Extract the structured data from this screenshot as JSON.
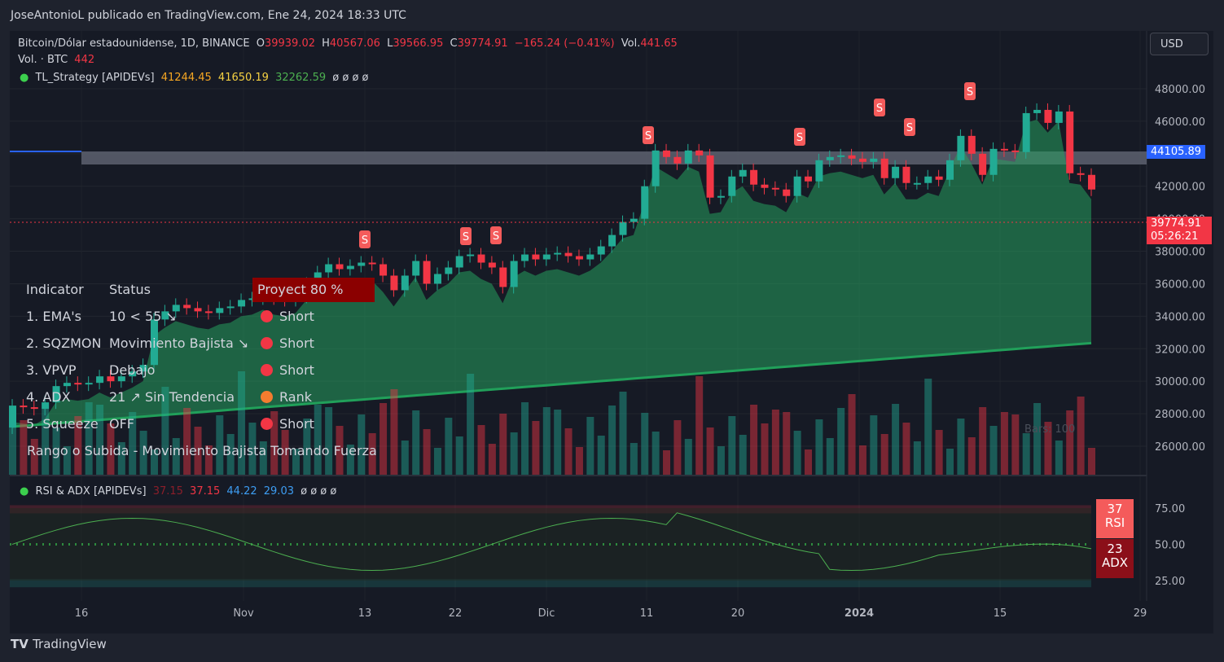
{
  "header": {
    "publisher": "JoseAntonioL publicado en TradingView.com, Ene 24, 2024 18:33 UTC"
  },
  "symbol": {
    "name": "Bitcoin/Dólar estadounidense, 1D, BINANCE",
    "o_label": "O",
    "o": "39939.02",
    "h_label": "H",
    "h": "40567.06",
    "l_label": "L",
    "l": "39566.95",
    "c_label": "C",
    "c": "39774.91",
    "change": "−165.24 (−0.41%)",
    "vol_label": "Vol.",
    "vol": "441.65"
  },
  "volume_legend": {
    "label": "Vol. · BTC",
    "value": "442"
  },
  "strategy_legend": {
    "name": "TL_Strategy [APIDEVs]",
    "v1": "41244.45",
    "v2": "41650.19",
    "v3": "32262.59",
    "tail": "ø ø ø ø"
  },
  "rsi_legend": {
    "name": "RSI & ADX [APIDEVs]",
    "v0": "37.15",
    "v1": "37.15",
    "v2": "44.22",
    "v3": "29.03",
    "tail": "ø ø ø ø"
  },
  "currency_button": "USD",
  "price_tags": {
    "level": "44105.89",
    "last": "39774.91",
    "countdown": "05:26:21"
  },
  "rsi_tags": {
    "rsi_value": "37",
    "rsi_label": "RSI",
    "adx_value": "23",
    "adx_label": "ADX"
  },
  "status_table": {
    "header": [
      "Indicator",
      "Status",
      "Proyect 80 %"
    ],
    "rows": [
      {
        "indicator": "1. EMA's",
        "status": "10 < 55 ↘",
        "signal": "Short",
        "color": "#f23645"
      },
      {
        "indicator": "2. SQZMON",
        "status": "Movimiento Bajista ↘",
        "signal": "Short",
        "color": "#f23645"
      },
      {
        "indicator": "3. VPVP",
        "status": "Debajo",
        "signal": "Short",
        "color": "#f23645"
      },
      {
        "indicator": "4. ADX",
        "status": "21 ↗ Sin Tendencia",
        "signal": "Rank",
        "color": "#f57c2f"
      },
      {
        "indicator": "5. Squeeze",
        "status": "OFF",
        "signal": "Short",
        "color": "#f23645"
      }
    ],
    "footer": "Rango o Subida - Movimiento Bajista Tomando Fuerza"
  },
  "bars_label": "Bars: 100",
  "footer_brand": "TradingView",
  "chart_data": {
    "type": "candlestick",
    "y_axis": [
      "48000.00",
      "46000.00",
      "44000.00",
      "42000.00",
      "40000.00",
      "38000.00",
      "36000.00",
      "34000.00",
      "32000.00",
      "30000.00",
      "28000.00",
      "26000.00"
    ],
    "ylim": [
      24000,
      49000
    ],
    "x_ticks": [
      "16",
      "Nov",
      "13",
      "22",
      "Dic",
      "11",
      "20",
      "2024",
      "15",
      "29"
    ],
    "rsi_axis": [
      "75.00",
      "50.00",
      "25.00"
    ],
    "candles": [
      [
        27150,
        28500
      ],
      [
        28500,
        28400
      ],
      [
        28400,
        28300
      ],
      [
        28300,
        28700
      ],
      [
        28700,
        29700
      ],
      [
        29700,
        29900
      ],
      [
        29900,
        29800
      ],
      [
        29800,
        29900
      ],
      [
        29900,
        30300
      ],
      [
        30300,
        30000
      ],
      [
        30000,
        30300
      ],
      [
        30300,
        30600
      ],
      [
        30600,
        31000
      ],
      [
        31000,
        33800
      ],
      [
        33800,
        34300
      ],
      [
        34300,
        34700
      ],
      [
        34700,
        34500
      ],
      [
        34500,
        34300
      ],
      [
        34300,
        34200
      ],
      [
        34200,
        34500
      ],
      [
        34500,
        34600
      ],
      [
        34600,
        35000
      ],
      [
        35000,
        35100
      ],
      [
        35100,
        35400
      ],
      [
        35400,
        35100
      ],
      [
        35100,
        35000
      ],
      [
        35000,
        35200
      ],
      [
        35200,
        36000
      ],
      [
        36000,
        36700
      ],
      [
        36700,
        37200
      ],
      [
        37200,
        36900
      ],
      [
        36900,
        37100
      ],
      [
        37100,
        37300
      ],
      [
        37300,
        37200
      ],
      [
        37200,
        36500
      ],
      [
        36500,
        35600
      ],
      [
        35600,
        36500
      ],
      [
        36500,
        37400
      ],
      [
        37400,
        36000
      ],
      [
        36000,
        36600
      ],
      [
        36600,
        37000
      ],
      [
        37000,
        37700
      ],
      [
        37700,
        37800
      ],
      [
        37800,
        37300
      ],
      [
        37300,
        37000
      ],
      [
        37000,
        35800
      ],
      [
        35800,
        37400
      ],
      [
        37400,
        37800
      ],
      [
        37800,
        37500
      ],
      [
        37500,
        37800
      ],
      [
        37800,
        37900
      ],
      [
        37900,
        37700
      ],
      [
        37700,
        37500
      ],
      [
        37500,
        37800
      ],
      [
        37800,
        38300
      ],
      [
        38300,
        39000
      ],
      [
        39000,
        39800
      ],
      [
        39800,
        40000
      ],
      [
        40000,
        42000
      ],
      [
        42000,
        44200
      ],
      [
        44200,
        43800
      ],
      [
        43800,
        43400
      ],
      [
        43400,
        44200
      ],
      [
        44200,
        43900
      ],
      [
        43900,
        41300
      ],
      [
        41300,
        41400
      ],
      [
        41400,
        42600
      ],
      [
        42600,
        43000
      ],
      [
        43000,
        42100
      ],
      [
        42100,
        41900
      ],
      [
        41900,
        41800
      ],
      [
        41800,
        41400
      ],
      [
        41400,
        42600
      ],
      [
        42600,
        42300
      ],
      [
        42300,
        43600
      ],
      [
        43600,
        43800
      ],
      [
        43800,
        43900
      ],
      [
        43900,
        43700
      ],
      [
        43700,
        43500
      ],
      [
        43500,
        43700
      ],
      [
        43700,
        42500
      ],
      [
        42500,
        43200
      ],
      [
        43200,
        42200
      ],
      [
        42200,
        42200
      ],
      [
        42200,
        42600
      ],
      [
        42600,
        42400
      ],
      [
        42400,
        43600
      ],
      [
        43600,
        45100
      ],
      [
        45100,
        44000
      ],
      [
        44000,
        42700
      ],
      [
        42700,
        44300
      ],
      [
        44300,
        44200
      ],
      [
        44200,
        44100
      ],
      [
        44100,
        46500
      ],
      [
        46500,
        46700
      ],
      [
        46700,
        45900
      ],
      [
        45900,
        46600
      ],
      [
        46600,
        42800
      ],
      [
        42800,
        42700
      ],
      [
        42700,
        41800
      ]
    ],
    "volume_relative": [
      0.2,
      0.35,
      0.28,
      0.22,
      0.3,
      0.55,
      0.3,
      0.25,
      0.27,
      0.2
    ],
    "signals": [
      "S",
      "S",
      "S",
      "S",
      "S",
      "S",
      "S",
      "S"
    ]
  }
}
